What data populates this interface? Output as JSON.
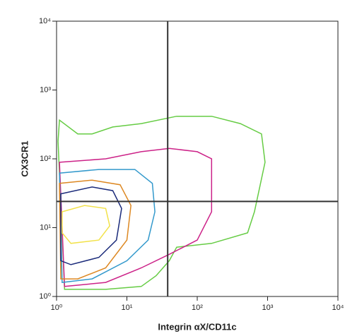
{
  "chart_data": {
    "type": "contour",
    "x_label": "Integrin αX/CD11c",
    "y_label": "CX3CR1",
    "log_x": true,
    "log_y": true,
    "xlim": [
      1,
      10000
    ],
    "ylim": [
      1,
      10000
    ],
    "xticks": [
      {
        "value": 1,
        "label": "10⁰"
      },
      {
        "value": 10,
        "label": "10¹"
      },
      {
        "value": 100,
        "label": "10²"
      },
      {
        "value": 1000,
        "label": "10³"
      },
      {
        "value": 10000,
        "label": "10⁴"
      }
    ],
    "yticks": [
      {
        "value": 1,
        "label": "10⁰"
      },
      {
        "value": 10,
        "label": "10¹"
      },
      {
        "value": 100,
        "label": "10²"
      },
      {
        "value": 1000,
        "label": "10³"
      },
      {
        "value": 10000,
        "label": "10⁴"
      }
    ],
    "quadrant_x": 38,
    "quadrant_y": 24,
    "quadrant_color": "#333333",
    "contours": [
      {
        "color": "#66cc44",
        "x": [
          1.05,
          1.1,
          2,
          3.2,
          6.3,
          16,
          51,
          160,
          410,
          820,
          920,
          650,
          520,
          160,
          51,
          40,
          26,
          16,
          5,
          1.3
        ],
        "y": [
          180,
          365,
          230,
          230,
          290,
          325,
          415,
          415,
          325,
          230,
          89,
          17,
          8.4,
          5.9,
          5.2,
          3.3,
          2,
          1.4,
          1.27,
          1.27
        ]
      },
      {
        "color": "#cc2288",
        "x": [
          1.1,
          5,
          16,
          40,
          100,
          160,
          160,
          100,
          40,
          16,
          5,
          1.3
        ],
        "y": [
          89,
          100,
          127,
          142,
          127,
          100,
          17,
          6.6,
          4.1,
          2.6,
          1.6,
          1.4
        ]
      },
      {
        "color": "#3399cc",
        "x": [
          1.1,
          4,
          13,
          23,
          25,
          20,
          10,
          3.2,
          1.2
        ],
        "y": [
          62,
          70,
          70,
          44,
          17,
          6.6,
          3.3,
          1.8,
          1.6
        ]
      },
      {
        "color": "#dd8822",
        "x": [
          1.1,
          3.2,
          8,
          11.4,
          10,
          5,
          2,
          1.15
        ],
        "y": [
          44,
          49,
          42,
          21,
          6.6,
          2.6,
          1.8,
          1.8
        ]
      },
      {
        "color": "#1a2a7a",
        "x": [
          1.15,
          3.2,
          6.3,
          8.4,
          7.1,
          4,
          1.6,
          1.15
        ],
        "y": [
          31,
          39,
          34.5,
          19,
          6.6,
          3.7,
          2.9,
          3.3
        ]
      },
      {
        "color": "#f2e24a",
        "x": [
          1.2,
          2.5,
          5,
          5.7,
          4,
          1.6,
          1.2
        ],
        "y": [
          17,
          21,
          19,
          10.6,
          6.6,
          5.9,
          8.4
        ]
      }
    ]
  }
}
